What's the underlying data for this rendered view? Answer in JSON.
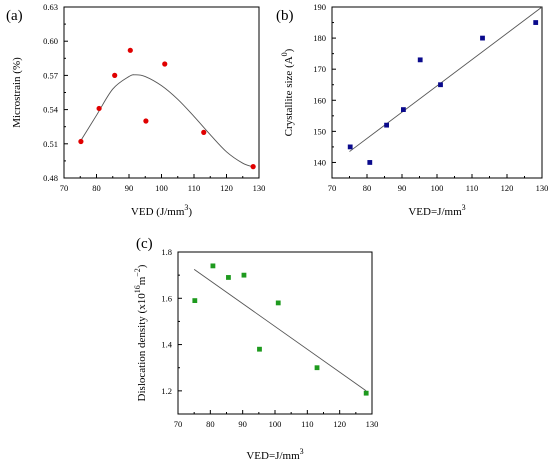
{
  "chart_data": [
    {
      "panel_label": "(a)",
      "type": "scatter",
      "xlabel": "VED (J/mm",
      "xlabel_sup": "3",
      "xlabel_tail": ")",
      "ylabel": "Microstrain (%)",
      "xlim": [
        70,
        130
      ],
      "ylim": [
        0.48,
        0.63
      ],
      "xticks": [
        "70",
        "80",
        "90",
        "100",
        "110",
        "120",
        "130"
      ],
      "yticks": [
        "0.48",
        "0.51",
        "0.54",
        "0.57",
        "0.60",
        "0.63"
      ],
      "marker_color": "#e00000",
      "marker_shape": "circle",
      "fit": "polynomial",
      "fit_line": {
        "x": [
          75,
          80,
          85,
          90,
          92,
          95,
          100,
          105,
          110,
          115,
          120,
          125,
          128
        ],
        "y": [
          0.512,
          0.535,
          0.558,
          0.569,
          0.5705,
          0.569,
          0.561,
          0.549,
          0.534,
          0.518,
          0.503,
          0.493,
          0.49
        ]
      },
      "series": [
        {
          "x": [
            75.2,
            80.8,
            85.6,
            90.4,
            95.2,
            101,
            113,
            128.2
          ],
          "y": [
            0.512,
            0.541,
            0.57,
            0.592,
            0.53,
            0.58,
            0.52,
            0.49
          ]
        }
      ]
    },
    {
      "panel_label": "(b)",
      "type": "scatter",
      "xlabel": "VED=J/mm",
      "xlabel_sup": "3",
      "xlabel_tail": "",
      "ylabel": "Crystallite size (A",
      "ylabel_sup": "0",
      "ylabel_tail": ")",
      "xlim": [
        70,
        130
      ],
      "ylim": [
        135,
        190
      ],
      "xticks": [
        "70",
        "80",
        "90",
        "100",
        "110",
        "120",
        "130"
      ],
      "yticks": [
        "140",
        "150",
        "160",
        "170",
        "180",
        "190"
      ],
      "marker_color": "#0a0a8c",
      "marker_shape": "square",
      "fit": "linear",
      "fit_line": {
        "x": [
          75,
          130
        ],
        "y": [
          143.5,
          190
        ]
      },
      "series": [
        {
          "x": [
            75.2,
            80.8,
            85.6,
            90.4,
            95.2,
            101,
            113,
            128.2
          ],
          "y": [
            145,
            140,
            152,
            157,
            173,
            165,
            180,
            185
          ]
        }
      ]
    },
    {
      "panel_label": "(c)",
      "type": "scatter",
      "xlabel": "VED=J/mm",
      "xlabel_sup": "3",
      "xlabel_tail": "",
      "ylabel": "Dislocation density (x10",
      "ylabel_sup": "16",
      "ylabel_mid": "m",
      "ylabel_sup2": "−2",
      "ylabel_tail": ")",
      "xlim": [
        70,
        130
      ],
      "ylim": [
        1.1,
        1.8
      ],
      "xticks": [
        "70",
        "80",
        "90",
        "100",
        "110",
        "120",
        "130"
      ],
      "yticks": [
        "1.2",
        "1.4",
        "1.6",
        "1.8"
      ],
      "marker_color": "#1e9a1e",
      "marker_shape": "square",
      "fit": "linear",
      "fit_line": {
        "x": [
          75,
          128.2
        ],
        "y": [
          1.725,
          1.2
        ]
      },
      "series": [
        {
          "x": [
            75.2,
            80.8,
            85.6,
            90.4,
            95.2,
            101,
            113,
            128.2
          ],
          "y": [
            1.59,
            1.74,
            1.69,
            1.7,
            1.38,
            1.58,
            1.3,
            1.19
          ]
        }
      ]
    }
  ]
}
